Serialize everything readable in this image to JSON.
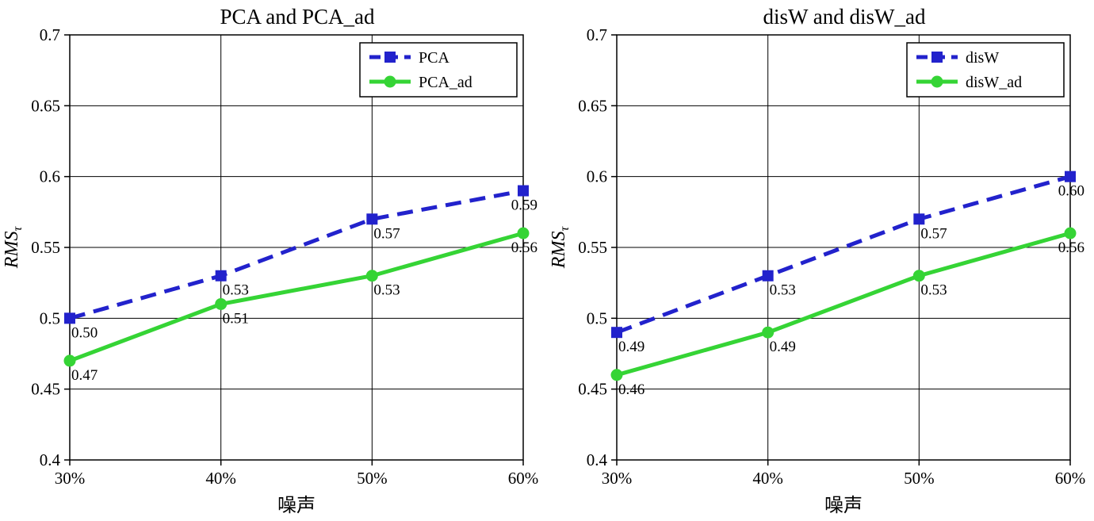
{
  "figure": {
    "background": "#ffffff",
    "text_color": "#000000"
  },
  "chart_data": [
    {
      "type": "line",
      "title": "PCA and PCA_ad",
      "xlabel": "噪声",
      "ylabel": "RMS",
      "ylabel_sub": "τ",
      "categories": [
        "30%",
        "40%",
        "50%",
        "60%"
      ],
      "ylim": [
        0.4,
        0.7
      ],
      "yticks": [
        0.4,
        0.45,
        0.5,
        0.55,
        0.6,
        0.65,
        0.7
      ],
      "ytick_labels": [
        "0.4",
        "0.45",
        "0.5",
        "0.55",
        "0.6",
        "0.65",
        "0.7"
      ],
      "grid": true,
      "legend_position": "top-right",
      "series": [
        {
          "name": "PCA",
          "color": "#2222cc",
          "line_style": "dashed",
          "marker": "square",
          "values": [
            0.5,
            0.53,
            0.57,
            0.59
          ],
          "labels": [
            "0.50",
            "0.53",
            "0.57",
            "0.59"
          ]
        },
        {
          "name": "PCA_ad",
          "color": "#35d435",
          "line_style": "solid",
          "marker": "circle",
          "values": [
            0.47,
            0.51,
            0.53,
            0.56
          ],
          "labels": [
            "0.47",
            "0.51",
            "0.53",
            "0.56"
          ]
        }
      ]
    },
    {
      "type": "line",
      "title": "disW and disW_ad",
      "xlabel": "噪声",
      "ylabel": "RMS",
      "ylabel_sub": "τ",
      "categories": [
        "30%",
        "40%",
        "50%",
        "60%"
      ],
      "ylim": [
        0.4,
        0.7
      ],
      "yticks": [
        0.4,
        0.45,
        0.5,
        0.55,
        0.6,
        0.65,
        0.7
      ],
      "ytick_labels": [
        "0.4",
        "0.45",
        "0.5",
        "0.55",
        "0.6",
        "0.65",
        "0.7"
      ],
      "grid": true,
      "legend_position": "top-right",
      "series": [
        {
          "name": "disW",
          "color": "#2222cc",
          "line_style": "dashed",
          "marker": "square",
          "values": [
            0.49,
            0.53,
            0.57,
            0.6
          ],
          "labels": [
            "0.49",
            "0.53",
            "0.57",
            "0.60"
          ]
        },
        {
          "name": "disW_ad",
          "color": "#35d435",
          "line_style": "solid",
          "marker": "circle",
          "values": [
            0.46,
            0.49,
            0.53,
            0.56
          ],
          "labels": [
            "0.46",
            "0.49",
            "0.53",
            "0.56"
          ]
        }
      ]
    }
  ]
}
